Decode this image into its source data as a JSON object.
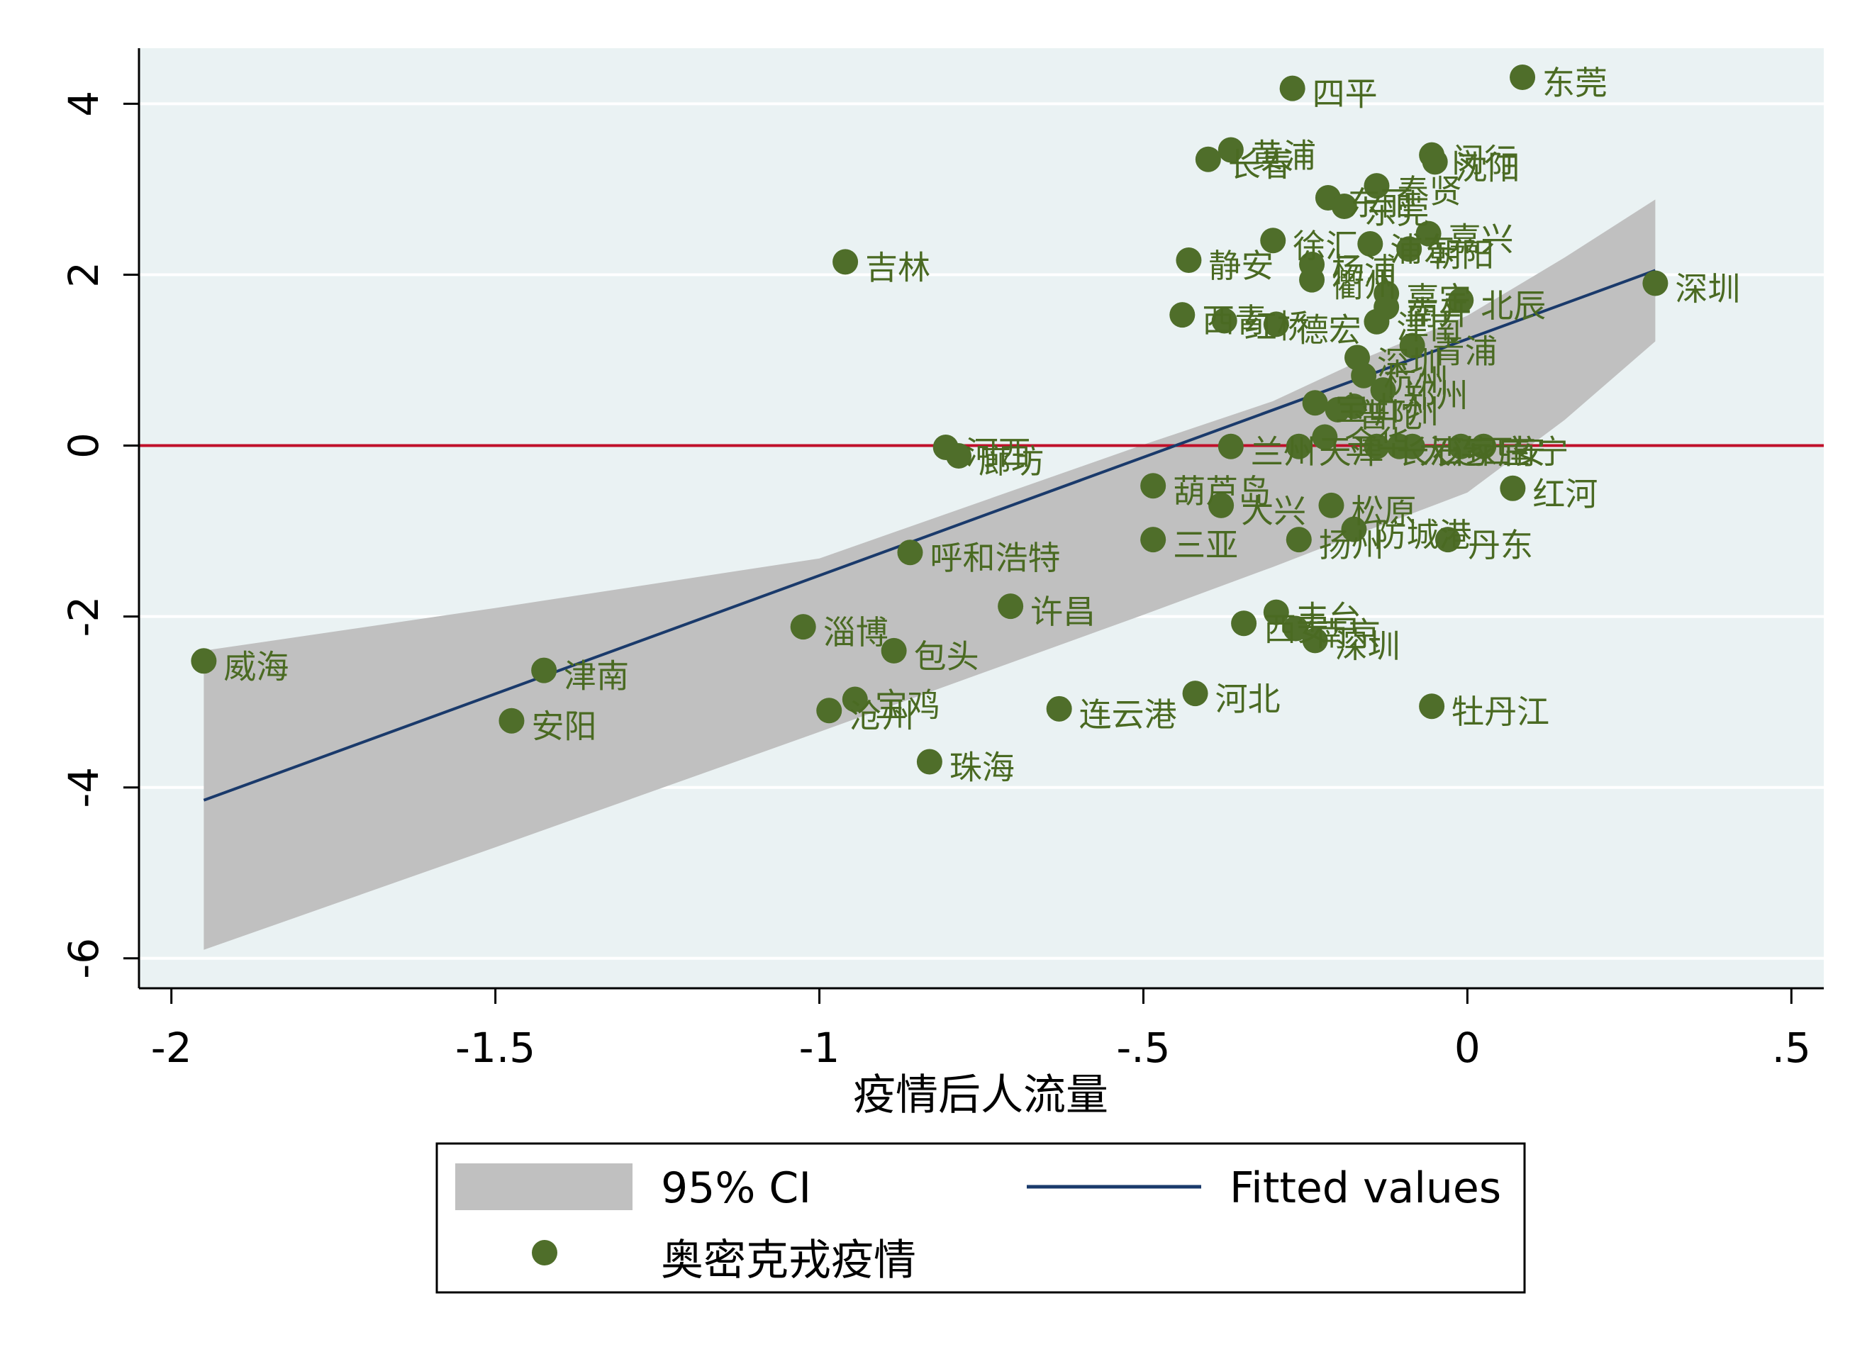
{
  "chart_data": {
    "type": "scatter",
    "title": "",
    "xlabel": "疫情后人流量",
    "ylabel": "",
    "xlim": [
      -2.05,
      0.55
    ],
    "ylim": [
      -6.35,
      4.65
    ],
    "x_ticks": [
      -2,
      -1.5,
      -1,
      -0.5,
      0,
      0.5
    ],
    "x_tick_labels": [
      "-2",
      "-1.5",
      "-1",
      "-.5",
      "0",
      ".5"
    ],
    "y_ticks": [
      -6,
      -4,
      -2,
      0,
      2,
      4
    ],
    "y_tick_labels": [
      "-6",
      "-4",
      "-2",
      "0",
      "2",
      "4"
    ],
    "grid": true,
    "reference_line_y": 0,
    "colors": {
      "plot_background": "#eaf2f3",
      "frame_background": "#ffffff",
      "gridline": "#ffffff",
      "points": "#4f6e2a",
      "labels": "#4a6a22",
      "fit_line": "#1a3a6b",
      "ci_band": "#c0c0c0",
      "reference_line": "#c0102a"
    },
    "fitted_line": {
      "name": "Fitted values",
      "x": [
        -1.95,
        0.29
      ],
      "y": [
        -4.15,
        2.05
      ]
    },
    "confidence_band": {
      "name": "95% CI",
      "x": [
        -1.95,
        -1.5,
        -1.0,
        -0.5,
        -0.3,
        -0.15,
        0.0,
        0.15,
        0.29
      ],
      "lower": [
        -5.9,
        -4.7,
        -3.35,
        -1.98,
        -1.42,
        -0.98,
        -0.55,
        0.3,
        1.22
      ],
      "upper": [
        -2.4,
        -1.9,
        -1.32,
        0.01,
        0.52,
        1.05,
        1.52,
        2.2,
        2.88
      ]
    },
    "series": [
      {
        "name": "奥密克戎疫情",
        "points": [
          {
            "label": "东莞",
            "x": 0.085,
            "y": 4.31
          },
          {
            "label": "四平",
            "x": -0.27,
            "y": 4.18
          },
          {
            "label": "黄浦",
            "x": -0.365,
            "y": 3.46
          },
          {
            "label": "长春",
            "x": -0.4,
            "y": 3.35
          },
          {
            "label": "闵行",
            "x": -0.055,
            "y": 3.4
          },
          {
            "label": "沈阳",
            "x": -0.05,
            "y": 3.32
          },
          {
            "label": "奉贤",
            "x": -0.14,
            "y": 3.04
          },
          {
            "label": "东丽",
            "x": -0.215,
            "y": 2.9
          },
          {
            "label": "东莞",
            "x": -0.19,
            "y": 2.8
          },
          {
            "label": "嘉兴",
            "x": -0.06,
            "y": 2.48
          },
          {
            "label": "徐汇",
            "x": -0.3,
            "y": 2.4
          },
          {
            "label": "浦东",
            "x": -0.15,
            "y": 2.36
          },
          {
            "label": "朝阳",
            "x": -0.09,
            "y": 2.3
          },
          {
            "label": "吉林",
            "x": -0.96,
            "y": 2.15
          },
          {
            "label": "静安",
            "x": -0.43,
            "y": 2.17
          },
          {
            "label": "杨浦",
            "x": -0.24,
            "y": 2.12
          },
          {
            "label": "衢州",
            "x": -0.24,
            "y": 1.94
          },
          {
            "label": "嘉定",
            "x": -0.125,
            "y": 1.78
          },
          {
            "label": "北辰",
            "x": -0.01,
            "y": 1.7
          },
          {
            "label": "南开",
            "x": -0.125,
            "y": 1.62
          },
          {
            "label": "西青",
            "x": -0.44,
            "y": 1.53
          },
          {
            "label": "红桥",
            "x": -0.375,
            "y": 1.46
          },
          {
            "label": "德宏",
            "x": -0.295,
            "y": 1.42
          },
          {
            "label": "津南",
            "x": -0.14,
            "y": 1.45
          },
          {
            "label": "青浦",
            "x": -0.085,
            "y": 1.17
          },
          {
            "label": "深圳",
            "x": -0.17,
            "y": 1.03
          },
          {
            "label": "杭州",
            "x": -0.16,
            "y": 0.82
          },
          {
            "label": "郑州",
            "x": -0.13,
            "y": 0.65
          },
          {
            "label": "宝山",
            "x": -0.235,
            "y": 0.5
          },
          {
            "label": "广州",
            "x": -0.175,
            "y": 0.46
          },
          {
            "label": "普陀",
            "x": -0.2,
            "y": 0.42
          },
          {
            "label": "深圳",
            "x": 0.29,
            "y": 1.9
          },
          {
            "label": "河西",
            "x": -0.805,
            "y": -0.02
          },
          {
            "label": "廊坊",
            "x": -0.785,
            "y": -0.12
          },
          {
            "label": "兰州",
            "x": -0.365,
            "y": -0.01
          },
          {
            "label": "天津",
            "x": -0.26,
            "y": -0.01
          },
          {
            "label": "金华",
            "x": -0.22,
            "y": 0.1
          },
          {
            "label": "长沙",
            "x": -0.14,
            "y": -0.01
          },
          {
            "label": "大连",
            "x": -0.105,
            "y": -0.01
          },
          {
            "label": "石家庄",
            "x": -0.085,
            "y": -0.01
          },
          {
            "label": "西安",
            "x": -0.01,
            "y": -0.01
          },
          {
            "label": "南宁",
            "x": 0.025,
            "y": -0.01
          },
          {
            "label": "葫芦岛",
            "x": -0.485,
            "y": -0.47
          },
          {
            "label": "大兴",
            "x": -0.38,
            "y": -0.7
          },
          {
            "label": "松原",
            "x": -0.21,
            "y": -0.7
          },
          {
            "label": "红河",
            "x": 0.07,
            "y": -0.5
          },
          {
            "label": "防城港",
            "x": -0.175,
            "y": -0.98
          },
          {
            "label": "扬州",
            "x": -0.26,
            "y": -1.1
          },
          {
            "label": "丹东",
            "x": -0.03,
            "y": -1.1
          },
          {
            "label": "三亚",
            "x": -0.485,
            "y": -1.1
          },
          {
            "label": "呼和浩特",
            "x": -0.86,
            "y": -1.25
          },
          {
            "label": "许昌",
            "x": -0.705,
            "y": -1.88
          },
          {
            "label": "丰台",
            "x": -0.295,
            "y": -1.95
          },
          {
            "label": "西安",
            "x": -0.345,
            "y": -2.08
          },
          {
            "label": "南京",
            "x": -0.265,
            "y": -2.14
          },
          {
            "label": "深圳",
            "x": -0.235,
            "y": -2.28
          },
          {
            "label": "淄博",
            "x": -1.025,
            "y": -2.12
          },
          {
            "label": "包头",
            "x": -0.885,
            "y": -2.4
          },
          {
            "label": "威海",
            "x": -1.95,
            "y": -2.52
          },
          {
            "label": "津南",
            "x": -1.425,
            "y": -2.63
          },
          {
            "label": "安阳",
            "x": -1.475,
            "y": -3.22
          },
          {
            "label": "宝鸡",
            "x": -0.945,
            "y": -2.97
          },
          {
            "label": "沧州",
            "x": -0.985,
            "y": -3.1
          },
          {
            "label": "连云港",
            "x": -0.63,
            "y": -3.08
          },
          {
            "label": "河北",
            "x": -0.42,
            "y": -2.9
          },
          {
            "label": "牡丹江",
            "x": -0.055,
            "y": -3.05
          },
          {
            "label": "珠海",
            "x": -0.83,
            "y": -3.7
          }
        ]
      }
    ],
    "legend": {
      "position": "bottom",
      "entries": [
        {
          "label": "95% CI",
          "kind": "band"
        },
        {
          "label": "Fitted values",
          "kind": "line"
        },
        {
          "label": "奥密克戎疫情",
          "kind": "marker"
        }
      ]
    }
  }
}
